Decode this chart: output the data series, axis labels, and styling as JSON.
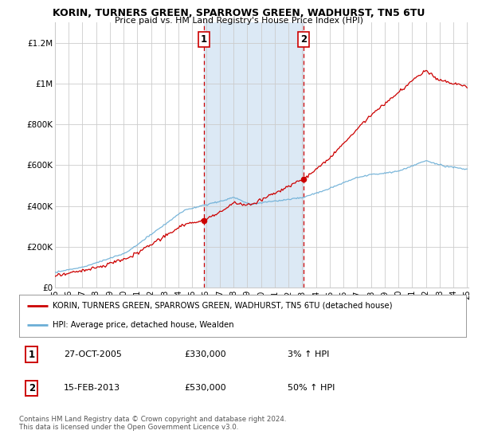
{
  "title": "KORIN, TURNERS GREEN, SPARROWS GREEN, WADHURST, TN5 6TU",
  "subtitle": "Price paid vs. HM Land Registry's House Price Index (HPI)",
  "legend_line1": "KORIN, TURNERS GREEN, SPARROWS GREEN, WADHURST, TN5 6TU (detached house)",
  "legend_line2": "HPI: Average price, detached house, Wealden",
  "annotation1_date": "27-OCT-2005",
  "annotation1_price": "£330,000",
  "annotation1_hpi": "3% ↑ HPI",
  "annotation2_date": "15-FEB-2013",
  "annotation2_price": "£530,000",
  "annotation2_hpi": "50% ↑ HPI",
  "footer": "Contains HM Land Registry data © Crown copyright and database right 2024.\nThis data is licensed under the Open Government Licence v3.0.",
  "ylim": [
    0,
    1300000
  ],
  "yticks": [
    0,
    200000,
    400000,
    600000,
    800000,
    1000000,
    1200000
  ],
  "ytick_labels": [
    "£0",
    "£200K",
    "£400K",
    "£600K",
    "£800K",
    "£1M",
    "£1.2M"
  ],
  "hpi_color": "#6baed6",
  "price_color": "#cc0000",
  "shading_color": "#dce9f5",
  "background_color": "#ffffff",
  "sale1_year": 2005.82,
  "sale1_price": 330000,
  "sale2_year": 2013.12,
  "sale2_price": 530000
}
